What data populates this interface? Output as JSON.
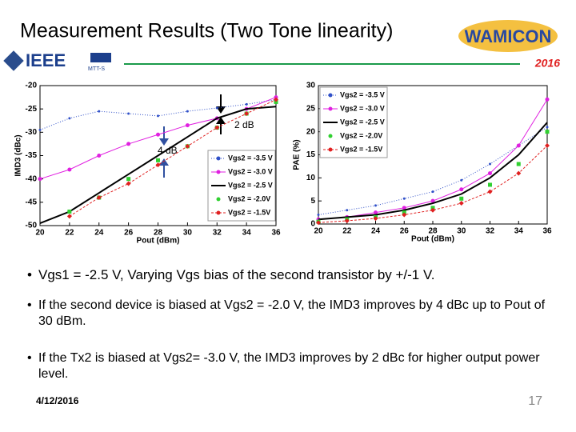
{
  "header": {
    "title": "Measurement Results (Two Tone linearity)",
    "ieee": "IEEE",
    "mtts": "MTT-S",
    "brand": "WAMICON",
    "year": "2016"
  },
  "chart_data": [
    {
      "type": "line",
      "ylabel": "IMD3 (dBc)",
      "xlabel": "Pout (dBm)",
      "x": [
        20,
        22,
        24,
        26,
        28,
        30,
        32,
        34,
        36
      ],
      "xlim": [
        20,
        36
      ],
      "xticks": [
        20,
        22,
        24,
        26,
        28,
        30,
        32,
        34,
        36
      ],
      "ylim": [
        -50,
        -20
      ],
      "yticks": [
        -50,
        -45,
        -40,
        -35,
        -30,
        -25,
        -20
      ],
      "legend": "lower right",
      "annotations": [
        "2 dB",
        "4 dB"
      ],
      "series": [
        {
          "name": "Vgs2 = -3.5 V",
          "color": "#3050c8",
          "values": [
            -29.5,
            -27,
            -25.5,
            -26,
            -26.5,
            -25.5,
            -24.8,
            -24,
            -23
          ]
        },
        {
          "name": "Vgs2 = -3.0 V",
          "color": "#e020e0",
          "values": [
            -40,
            -38,
            -35,
            -32.5,
            -30.5,
            -28.5,
            -27,
            -25,
            -22.5
          ]
        },
        {
          "name": "Vgs2 = -2.5 V",
          "color": "#000000",
          "values": [
            -49.5,
            -47,
            -43,
            -39,
            -35,
            -31,
            -27,
            -25,
            -24.5
          ]
        },
        {
          "name": "Vgs2 = -2.0V",
          "color": "#30d030",
          "values": [
            null,
            -47,
            -44,
            -40,
            -36,
            -33,
            -29,
            -26,
            -23.5
          ]
        },
        {
          "name": "Vgs2 = -1.5V",
          "color": "#e02020",
          "values": [
            null,
            -48,
            -44,
            -41,
            -37,
            -33,
            -29,
            -26,
            -23
          ]
        }
      ]
    },
    {
      "type": "line",
      "ylabel": "PAE (%)",
      "xlabel": "Pout (dBm)",
      "x": [
        20,
        22,
        24,
        26,
        28,
        30,
        32,
        34,
        36
      ],
      "xlim": [
        20,
        36
      ],
      "xticks": [
        20,
        22,
        24,
        26,
        28,
        30,
        32,
        34,
        36
      ],
      "ylim": [
        0,
        30
      ],
      "yticks": [
        0,
        5,
        10,
        15,
        20,
        25,
        30
      ],
      "legend": "upper left",
      "series": [
        {
          "name": "Vgs2 = -3.5 V",
          "color": "#3050c8",
          "values": [
            2,
            3,
            4,
            5.5,
            7,
            9.5,
            13,
            17,
            21
          ]
        },
        {
          "name": "Vgs2 = -3.0 V",
          "color": "#e020e0",
          "values": [
            1,
            1.5,
            2.5,
            3.5,
            5,
            7.5,
            11,
            17,
            27
          ]
        },
        {
          "name": "Vgs2 = -2.5 V",
          "color": "#000000",
          "values": [
            1,
            1.5,
            2,
            3,
            4.5,
            6.5,
            10,
            15,
            22
          ]
        },
        {
          "name": "Vgs2 = -2.0V",
          "color": "#30d030",
          "values": [
            0.5,
            1,
            1.5,
            2.5,
            3.5,
            5.5,
            8.5,
            13,
            20
          ]
        },
        {
          "name": "Vgs2 = -1.5V",
          "color": "#e02020",
          "values": [
            0.3,
            0.7,
            1.2,
            2,
            3,
            4.5,
            7,
            11,
            17
          ]
        }
      ]
    }
  ],
  "bullets": [
    "Vgs1 = -2.5 V, Varying Vgs bias of the second transistor by +/-1 V.",
    "If the second device is biased at Vgs2 = -2.0 V, the IMD3 improves by 4 dBc up to Pout of 30 dBm.",
    "If the Tx2 is biased at Vgs2= -3.0 V, the IMD3 improves by 2 dBc for higher output power level."
  ],
  "footer": {
    "date": "4/12/2016",
    "page": "17"
  }
}
